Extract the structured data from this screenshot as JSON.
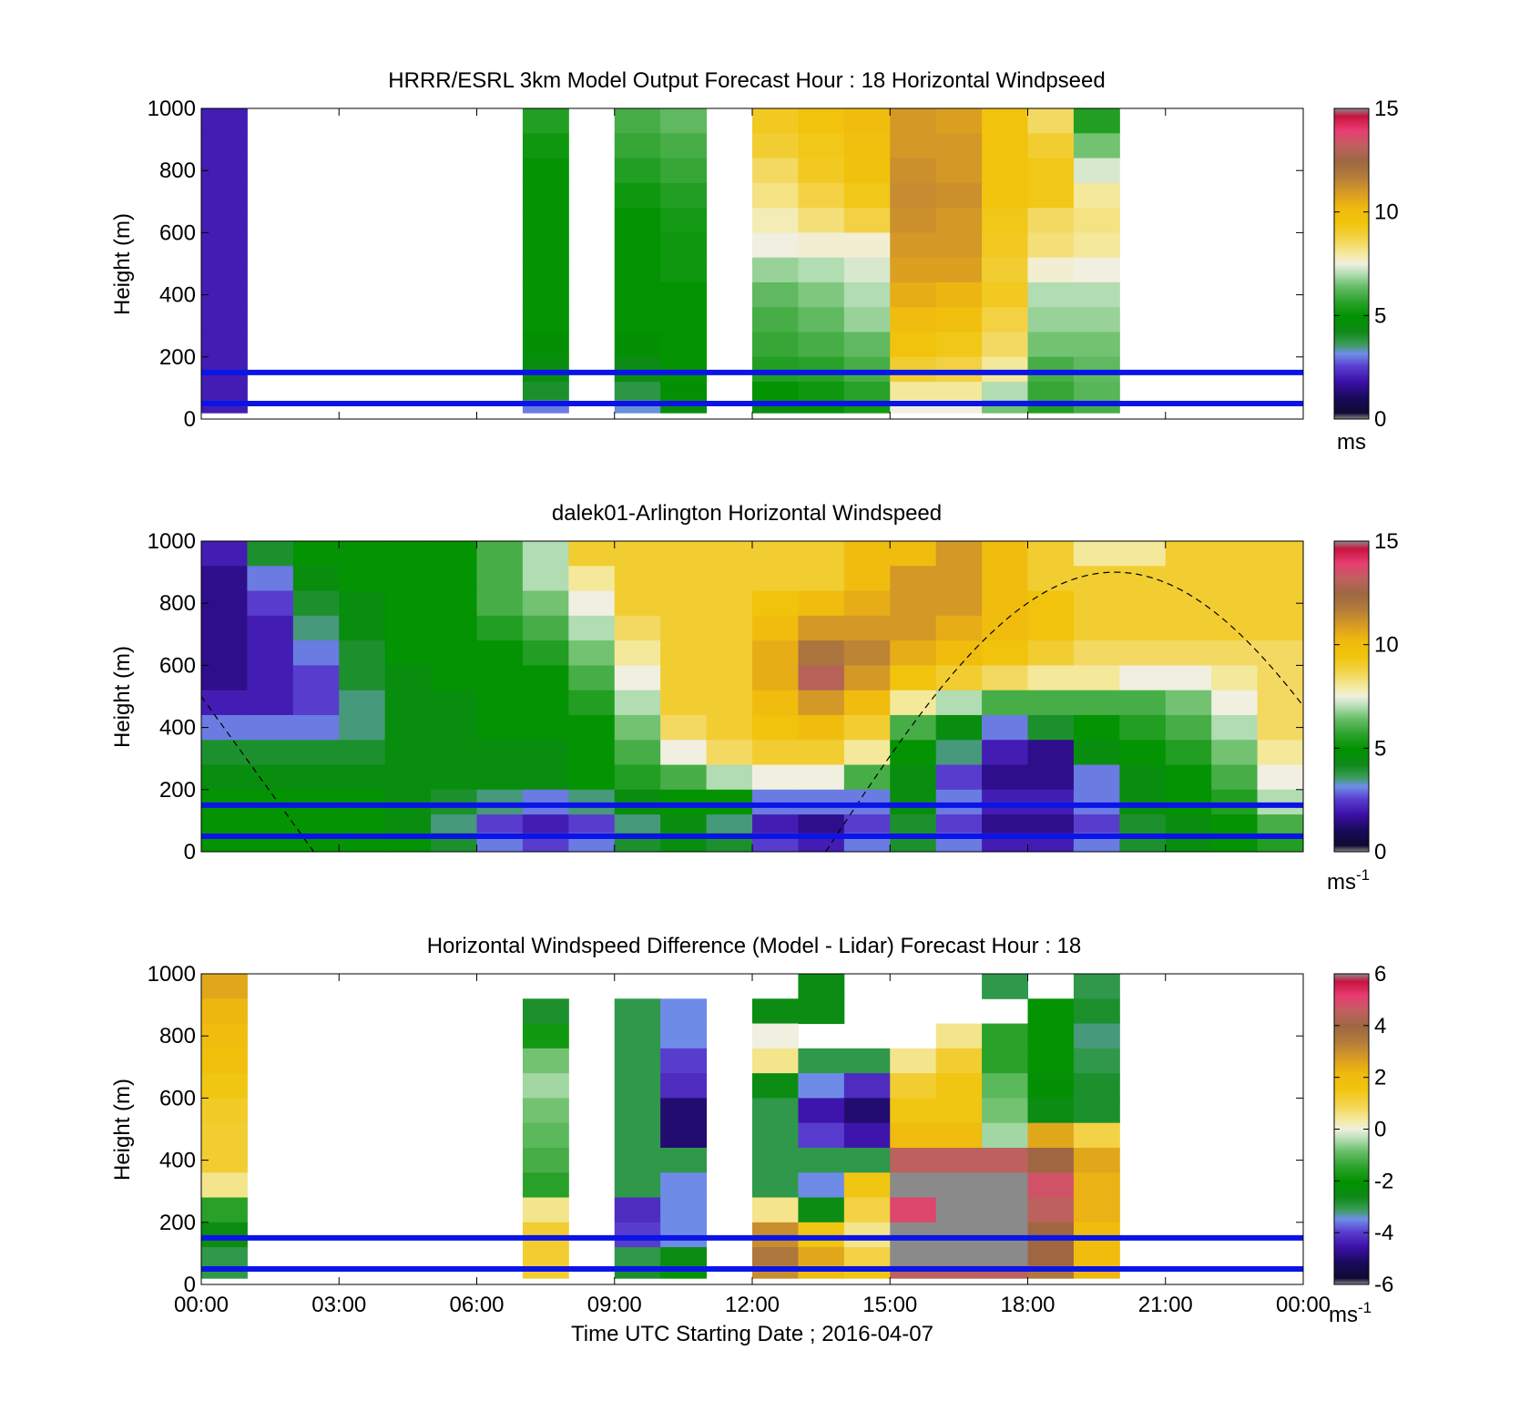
{
  "figure": {
    "xlabel": "Time UTC  Starting Date ; 2016-04-07"
  },
  "panels": [
    {
      "title": "HRRR/ESRL 3km Model Output   Forecast Hour : 18 Horizontal Windpseed",
      "ylabel": "Height (m)",
      "colorbar": {
        "ticks": [
          "0",
          "5",
          "10",
          "15"
        ],
        "unit": "ms",
        "sup": ""
      }
    },
    {
      "title": "dalek01-Arlington  Horizontal Windspeed",
      "ylabel": "Height (m)",
      "colorbar": {
        "ticks": [
          "0",
          "5",
          "10",
          "15"
        ],
        "unit": "ms",
        "sup": "-1"
      }
    },
    {
      "title": "Horizontal Windspeed Difference (Model - Lidar) Forecast Hour : 18",
      "ylabel": "Height (m)",
      "colorbar": {
        "ticks": [
          "-6",
          "-4",
          "-2",
          "0",
          "2",
          "4",
          "6"
        ],
        "unit": "ms",
        "sup": "-1"
      }
    }
  ],
  "chart_data": [
    {
      "type": "heatmap",
      "title": "HRRR/ESRL 3km Model Output   Forecast Hour : 18 Horizontal Windpseed",
      "xlabel": "",
      "ylabel": "Height (m)",
      "x_ticks": [
        "00:00",
        "03:00",
        "06:00",
        "09:00",
        "12:00",
        "15:00",
        "18:00",
        "21:00",
        "00:00"
      ],
      "y_ticks": [
        "0",
        "200",
        "400",
        "600",
        "800",
        "1000"
      ],
      "xlim_hours": [
        0,
        24
      ],
      "ylim": [
        0,
        1000
      ],
      "clim": [
        0,
        15
      ],
      "colorbar_label": "ms",
      "heights_m": [
        960,
        880,
        800,
        720,
        640,
        560,
        480,
        400,
        320,
        240,
        160,
        80,
        40
      ],
      "columns": [
        {
          "time_hours": 0.5,
          "speed": [
            2,
            2,
            2,
            2,
            2,
            2,
            2,
            2,
            2,
            2,
            2,
            2,
            2
          ]
        },
        {
          "time_hours": 7.5,
          "speed": [
            5.5,
            5.2,
            5,
            5,
            5,
            5,
            5,
            5,
            5,
            4.8,
            4.5,
            4,
            3
          ]
        },
        {
          "time_hours": 9.5,
          "speed": [
            6,
            5.8,
            5.5,
            5.2,
            5,
            5,
            5,
            5,
            5,
            4.8,
            4.3,
            3.8,
            3.2
          ]
        },
        {
          "time_hours": 10.5,
          "speed": [
            6.3,
            6,
            5.8,
            5.5,
            5.3,
            5.2,
            5.2,
            5,
            5,
            5,
            5,
            4.8,
            4.5
          ]
        },
        {
          "time_hours": 12.5,
          "speed": [
            9.2,
            9,
            8.5,
            8.2,
            7.8,
            7.5,
            6.8,
            6.3,
            6,
            5.8,
            5.5,
            5,
            4.5
          ]
        },
        {
          "time_hours": 13.5,
          "speed": [
            9.5,
            9.3,
            9.2,
            8.8,
            8.3,
            7.6,
            7,
            6.6,
            6.3,
            6,
            5.6,
            5.2,
            4.8
          ]
        },
        {
          "time_hours": 14.5,
          "speed": [
            10,
            9.8,
            9.6,
            9.3,
            8.8,
            7.6,
            7.3,
            7,
            6.8,
            6.3,
            6,
            5.6,
            5.3
          ]
        },
        {
          "time_hours": 15.5,
          "speed": [
            11,
            11,
            11.2,
            11.3,
            11.2,
            11,
            10.8,
            10.5,
            10,
            9.5,
            9,
            8,
            7.5
          ]
        },
        {
          "time_hours": 16.5,
          "speed": [
            10.8,
            11,
            11,
            11.2,
            11,
            11,
            10.8,
            10.3,
            9.8,
            9.3,
            8.8,
            8,
            7.5
          ]
        },
        {
          "time_hours": 17.5,
          "speed": [
            9.5,
            9.5,
            9.5,
            9.5,
            9.3,
            9.2,
            9,
            9.2,
            8.8,
            8.5,
            8,
            7,
            6.5
          ]
        },
        {
          "time_hours": 18.5,
          "speed": [
            8.5,
            9,
            9.3,
            9.3,
            8.5,
            8.3,
            7.6,
            7,
            6.8,
            6.5,
            6,
            5.8,
            5.5
          ]
        },
        {
          "time_hours": 19.5,
          "speed": [
            5.5,
            6.5,
            7.3,
            8,
            8.2,
            8,
            7.5,
            7,
            6.8,
            6.5,
            6.3,
            6.2,
            6
          ]
        }
      ],
      "horizontal_lines_m": [
        150,
        50
      ]
    },
    {
      "type": "heatmap",
      "title": "dalek01-Arlington  Horizontal Windspeed",
      "xlabel": "",
      "ylabel": "Height (m)",
      "x_ticks": [
        "00:00",
        "03:00",
        "06:00",
        "09:00",
        "12:00",
        "15:00",
        "18:00",
        "21:00",
        "00:00"
      ],
      "y_ticks": [
        "0",
        "200",
        "400",
        "600",
        "800",
        "1000"
      ],
      "xlim_hours": [
        0,
        24
      ],
      "ylim": [
        0,
        1000
      ],
      "clim": [
        0,
        15
      ],
      "colorbar_label": "ms-1",
      "heights_m": [
        960,
        880,
        800,
        720,
        640,
        560,
        480,
        400,
        320,
        240,
        160,
        80,
        40
      ],
      "time_hours": [
        0.5,
        1.5,
        2.5,
        3.5,
        4.5,
        5.5,
        6.5,
        7.5,
        8.5,
        9.5,
        10.5,
        11.5,
        12.5,
        13.5,
        14.5,
        15.5,
        16.5,
        17.5,
        18.5,
        19.5,
        20.5,
        21.5,
        22.5,
        23.5
      ],
      "speed_by_height": [
        [
          2,
          4,
          5,
          5,
          5,
          5,
          6,
          7,
          9,
          9,
          9,
          9,
          9,
          9,
          10,
          10,
          11,
          10,
          9,
          8,
          8,
          9,
          9,
          9
        ],
        [
          1.5,
          3,
          4.5,
          5,
          5,
          5,
          6,
          7,
          8,
          9,
          9,
          9,
          9,
          9,
          10,
          11,
          11,
          10,
          9,
          9,
          9,
          9,
          9,
          9
        ],
        [
          1.5,
          2.5,
          4,
          4.5,
          5,
          5,
          6,
          6.5,
          7.5,
          9,
          9,
          9,
          9.5,
          10,
          10.5,
          11,
          11,
          10,
          9.5,
          9,
          9,
          9,
          9,
          9
        ],
        [
          1.5,
          2,
          3.5,
          4.5,
          5,
          5,
          5.5,
          6,
          7,
          8.5,
          9,
          9,
          10,
          11,
          11,
          11,
          10.5,
          10,
          9.5,
          9,
          9,
          9,
          9,
          9
        ],
        [
          1.5,
          2,
          3,
          4,
          5,
          5,
          5,
          5.5,
          6.5,
          8,
          9,
          9,
          10.5,
          12,
          11.5,
          10.5,
          10,
          9.5,
          9,
          8.5,
          8.5,
          8.5,
          8.5,
          8.5
        ],
        [
          1.5,
          2,
          2.5,
          4,
          4.5,
          5,
          5,
          5,
          6,
          7.5,
          9,
          9,
          10.5,
          13,
          11,
          9.5,
          9,
          8.5,
          8,
          8,
          7.5,
          7.5,
          8,
          8.5
        ],
        [
          2,
          2,
          2.5,
          3.5,
          4.5,
          4.5,
          5,
          5,
          5.5,
          7,
          9,
          9,
          10,
          11,
          10,
          8,
          7,
          6,
          6,
          6,
          6,
          6.5,
          7.5,
          8.5
        ],
        [
          3,
          3,
          3,
          3.5,
          4.5,
          4.5,
          5,
          5,
          5,
          6.5,
          8.5,
          9,
          9.5,
          10,
          9,
          6,
          4.5,
          3,
          4,
          5,
          5.5,
          6,
          7,
          8.5
        ],
        [
          4,
          4,
          4,
          4,
          4.5,
          4.5,
          4.5,
          4.5,
          5,
          6,
          7.5,
          8.5,
          9,
          9,
          8,
          5,
          3.5,
          2,
          1.5,
          4.5,
          5,
          5.5,
          6.5,
          8
        ],
        [
          4.5,
          4.5,
          4.5,
          4.5,
          4.5,
          4.5,
          4.5,
          4.5,
          5,
          5.5,
          6,
          7,
          7.5,
          7.5,
          6,
          4.5,
          2.5,
          1.5,
          1.5,
          3,
          4.5,
          5,
          6,
          7.5
        ],
        [
          5,
          5,
          5,
          5,
          4.5,
          4,
          3.5,
          3,
          3.5,
          4.5,
          5,
          5,
          3,
          3,
          3,
          4.5,
          3,
          2,
          2,
          3,
          4.5,
          5,
          5.5,
          7
        ],
        [
          5,
          5,
          5,
          5,
          4.5,
          3.5,
          2.5,
          2,
          2.5,
          3.5,
          4.5,
          3.5,
          2,
          1.5,
          2.5,
          4,
          2.5,
          1.5,
          1.5,
          2.5,
          4,
          4.5,
          5,
          6
        ],
        [
          5,
          5,
          5,
          5,
          5,
          4,
          3,
          2.5,
          3,
          4,
          4.5,
          4,
          2.5,
          2,
          3,
          4,
          3,
          2,
          2,
          3,
          4,
          4.5,
          5,
          5.5
        ]
      ],
      "horizontal_lines_m": [
        150,
        50
      ]
    },
    {
      "type": "heatmap",
      "title": "Horizontal Windspeed Difference (Model - Lidar) Forecast Hour : 18",
      "xlabel": "Time UTC  Starting Date ; 2016-04-07",
      "ylabel": "Height (m)",
      "x_ticks": [
        "00:00",
        "03:00",
        "06:00",
        "09:00",
        "12:00",
        "15:00",
        "18:00",
        "21:00",
        "00:00"
      ],
      "y_ticks": [
        "0",
        "200",
        "400",
        "600",
        "800",
        "1000"
      ],
      "xlim_hours": [
        0,
        24
      ],
      "ylim": [
        0,
        1000
      ],
      "clim": [
        -6,
        6
      ],
      "colorbar_label": "ms-1",
      "heights_m": [
        960,
        880,
        800,
        720,
        640,
        560,
        480,
        400,
        320,
        240,
        160,
        80,
        40
      ],
      "columns": [
        {
          "time_hours": 0.5,
          "diff": [
            2.5,
            2.2,
            2,
            1.8,
            1.5,
            1.3,
            1.2,
            1.2,
            0.5,
            -1.5,
            -2.5,
            -3,
            -3
          ]
        },
        {
          "time_hours": 7.5,
          "diff": [
            null,
            -2.8,
            -1.8,
            -0.8,
            -0.5,
            -0.8,
            -1,
            -1.2,
            -1.5,
            0.5,
            1.2,
            1.2,
            1.2
          ]
        },
        {
          "time_hours": 9.5,
          "diff": [
            null,
            -3,
            -3,
            -3,
            -3,
            -3,
            -3,
            -3,
            -3,
            -4.2,
            -4,
            -3,
            -2.8
          ]
        },
        {
          "time_hours": 10.5,
          "diff": [
            null,
            -3.5,
            -3.5,
            -4,
            -4.2,
            -5,
            -5,
            -3,
            -3.5,
            -3.5,
            -3.5,
            -2.5,
            -2
          ]
        },
        {
          "time_hours": 12.5,
          "diff": [
            null,
            -2.5,
            0,
            0.5,
            -2.5,
            -3,
            -3,
            -3,
            -3,
            0.5,
            3,
            3.5,
            3
          ]
        },
        {
          "time_hours": 13.5,
          "diff": [
            -2.5,
            -2.5,
            null,
            -3,
            -3.5,
            -4.5,
            -4,
            -3,
            -3.5,
            -2.5,
            1.5,
            2.5,
            2
          ]
        },
        {
          "time_hours": 14.5,
          "diff": [
            null,
            null,
            null,
            -3,
            -4.2,
            -5,
            -4.5,
            -3,
            1.5,
            1,
            0.5,
            1,
            1.5
          ]
        },
        {
          "time_hours": 15.5,
          "diff": [
            null,
            null,
            null,
            0.5,
            1.2,
            1.5,
            2,
            4.5,
            7,
            5,
            7,
            7,
            4.5
          ]
        },
        {
          "time_hours": 16.5,
          "diff": [
            null,
            null,
            0.5,
            1.2,
            1.5,
            1.5,
            2,
            4.5,
            7,
            7,
            7,
            7,
            4.5
          ]
        },
        {
          "time_hours": 17.5,
          "diff": [
            -3,
            null,
            -1.5,
            -1.5,
            -1,
            -0.8,
            -0.5,
            4.5,
            7,
            7,
            7,
            7,
            4.5
          ]
        },
        {
          "time_hours": 18.5,
          "diff": [
            null,
            -2,
            -2,
            -2,
            -2.2,
            -2.5,
            2.5,
            4,
            4.8,
            4.5,
            4,
            4,
            3.5
          ]
        },
        {
          "time_hours": 19.5,
          "diff": [
            -3,
            -2.8,
            -3.2,
            -3,
            -2.8,
            -2.8,
            1,
            2.5,
            2.3,
            2.3,
            2,
            2,
            2.2
          ]
        }
      ],
      "horizontal_lines_m": [
        150,
        50
      ]
    }
  ]
}
